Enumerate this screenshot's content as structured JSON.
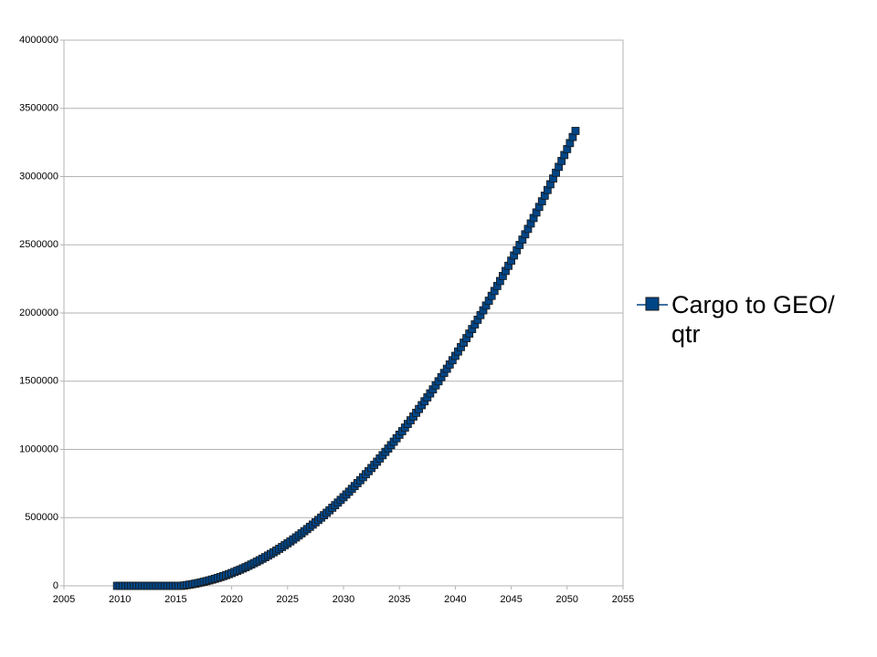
{
  "chart_data": {
    "type": "scatter",
    "x": [
      2009.75,
      2010,
      2010.25,
      2010.5,
      2010.75,
      2011,
      2011.25,
      2011.5,
      2011.75,
      2012,
      2012.25,
      2012.5,
      2012.75,
      2013,
      2013.25,
      2013.5,
      2013.75,
      2014,
      2014.25,
      2014.5,
      2014.75,
      2015,
      2015.25,
      2015.5,
      2015.75,
      2016,
      2016.25,
      2016.5,
      2016.75,
      2017,
      2017.25,
      2017.5,
      2017.75,
      2018,
      2018.25,
      2018.5,
      2018.75,
      2019,
      2019.25,
      2019.5,
      2019.75,
      2020,
      2020.25,
      2020.5,
      2020.75,
      2021,
      2021.25,
      2021.5,
      2021.75,
      2022,
      2022.25,
      2022.5,
      2022.75,
      2023,
      2023.25,
      2023.5,
      2023.75,
      2024,
      2024.25,
      2024.5,
      2024.75,
      2025,
      2025.25,
      2025.5,
      2025.75,
      2026,
      2026.25,
      2026.5,
      2026.75,
      2027,
      2027.25,
      2027.5,
      2027.75,
      2028,
      2028.25,
      2028.5,
      2028.75,
      2029,
      2029.25,
      2029.5,
      2029.75,
      2030,
      2030.25,
      2030.5,
      2030.75,
      2031,
      2031.25,
      2031.5,
      2031.75,
      2032,
      2032.25,
      2032.5,
      2032.75,
      2033,
      2033.25,
      2033.5,
      2033.75,
      2034,
      2034.25,
      2034.5,
      2034.75,
      2035,
      2035.25,
      2035.5,
      2035.75,
      2036,
      2036.25,
      2036.5,
      2036.75,
      2037,
      2037.25,
      2037.5,
      2037.75,
      2038,
      2038.25,
      2038.5,
      2038.75,
      2039,
      2039.25,
      2039.5,
      2039.75,
      2040,
      2040.25,
      2040.5,
      2040.75,
      2041,
      2041.25,
      2041.5,
      2041.75,
      2042,
      2042.25,
      2042.5,
      2042.75,
      2043,
      2043.25,
      2043.5,
      2043.75,
      2044,
      2044.25,
      2044.5,
      2044.75,
      2045,
      2045.25,
      2045.5,
      2045.75,
      2046,
      2046.25,
      2046.5,
      2046.75,
      2047,
      2047.25,
      2047.5,
      2047.75,
      2048,
      2048.25,
      2048.5,
      2048.75,
      2049,
      2049.25,
      2049.5,
      2049.75,
      2050,
      2050.25,
      2050.5,
      2050.75
    ],
    "series": [
      {
        "name": "Cargo to GEO/ qtr",
        "color": "#004586",
        "values": [
          0,
          0,
          0,
          0,
          0,
          0,
          0,
          0,
          0,
          0,
          0,
          0,
          0,
          0,
          0,
          0,
          0,
          0,
          0,
          0,
          0,
          0,
          0,
          0,
          2650,
          5600,
          8850,
          12400,
          16250,
          20400,
          24850,
          29600,
          34650,
          40000,
          45650,
          51600,
          57850,
          64400,
          71250,
          78400,
          85850,
          93600,
          101650,
          110000,
          118650,
          127600,
          136850,
          146400,
          156250,
          166400,
          176850,
          187600,
          198650,
          210000,
          221650,
          233600,
          245850,
          258400,
          271250,
          284400,
          297850,
          311600,
          325650,
          340000,
          354650,
          369600,
          384850,
          400400,
          416250,
          432400,
          448850,
          465600,
          482650,
          500000,
          517650,
          535600,
          553850,
          572400,
          591250,
          610400,
          629850,
          649600,
          669650,
          690000,
          710650,
          731600,
          752850,
          774400,
          796250,
          818400,
          840850,
          863600,
          886650,
          910000,
          933650,
          957600,
          981850,
          1006400,
          1031250,
          1056400,
          1081850,
          1107600,
          1133650,
          1160000,
          1186650,
          1213600,
          1240850,
          1268400,
          1296250,
          1324400,
          1352850,
          1381600,
          1410650,
          1440000,
          1469650,
          1499600,
          1529850,
          1560400,
          1591250,
          1622400,
          1653850,
          1685600,
          1717650,
          1750000,
          1782650,
          1815600,
          1848850,
          1882400,
          1916250,
          1950400,
          1984850,
          2019600,
          2054650,
          2090000,
          2125650,
          2161600,
          2197850,
          2234400,
          2271250,
          2308400,
          2345850,
          2383600,
          2421650,
          2460000,
          2498650,
          2537600,
          2576850,
          2616400,
          2656250,
          2696400,
          2736850,
          2777600,
          2818650,
          2860000,
          2901650,
          2943600,
          2985850,
          3028400,
          3071250,
          3114400,
          3157850,
          3201600,
          3245650,
          3290000,
          3334650
        ]
      }
    ],
    "xlim": [
      2005,
      2055
    ],
    "xticks": [
      2005,
      2010,
      2015,
      2020,
      2025,
      2030,
      2035,
      2040,
      2045,
      2050,
      2055
    ],
    "ylim": [
      0,
      4000000
    ],
    "yticks": [
      0,
      500000,
      1000000,
      1500000,
      2000000,
      2500000,
      3000000,
      3500000,
      4000000
    ],
    "grid": true,
    "legend": "right"
  }
}
